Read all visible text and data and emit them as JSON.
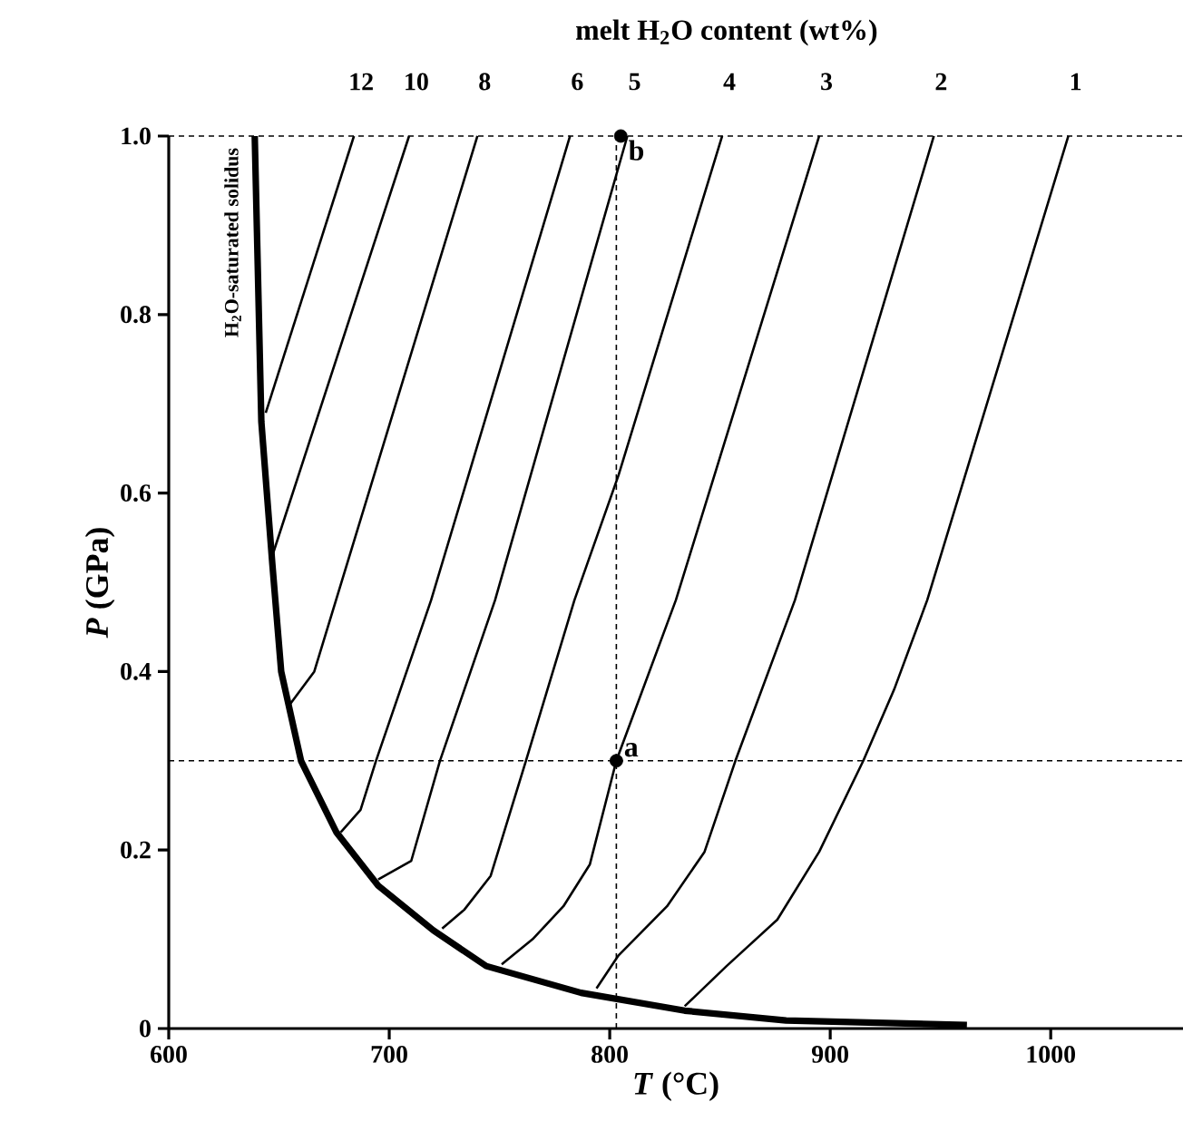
{
  "chart_data": {
    "type": "line",
    "title": "melt H$_{2}$O content (wt%)",
    "xlabel": "*T* (°C)",
    "ylabel": "*P* (GPa)",
    "xlim": [
      600,
      1060
    ],
    "ylim": [
      0,
      1.0
    ],
    "xticks": [
      600,
      700,
      800,
      900,
      1000
    ],
    "yticks": [
      0,
      0.2,
      0.4,
      0.6,
      0.8,
      {
        "value": 1.0,
        "label": "1.0"
      }
    ],
    "grid": false,
    "series": [
      {
        "name": "H$_{2}$O-saturated solidus",
        "color": "#000000",
        "x": [
          639,
          642,
          647,
          651,
          660,
          676,
          695,
          720,
          744,
          787,
          834,
          880,
          962
        ],
        "values": [
          1.0,
          0.68,
          0.52,
          0.4,
          0.3,
          0.22,
          0.16,
          0.11,
          0.07,
          0.04,
          0.02,
          0.009,
          0.004
        ]
      },
      {
        "name": "12",
        "color": "#000000",
        "x": [
          644,
          684
        ],
        "values": [
          0.69,
          1.0
        ]
      },
      {
        "name": "10",
        "color": "#000000",
        "x": [
          647,
          709
        ],
        "values": [
          0.53,
          1.0
        ]
      },
      {
        "name": "8",
        "color": "#000000",
        "x": [
          654,
          666,
          740
        ],
        "values": [
          0.36,
          0.4,
          1.0
        ]
      },
      {
        "name": "6",
        "color": "#000000",
        "x": [
          678,
          687,
          694,
          719,
          782
        ],
        "values": [
          0.22,
          0.245,
          0.3,
          0.48,
          1.0
        ]
      },
      {
        "name": "5",
        "color": "#000000",
        "x": [
          695,
          710,
          723,
          748,
          808
        ],
        "values": [
          0.167,
          0.188,
          0.3,
          0.48,
          1.0
        ]
      },
      {
        "name": "4",
        "color": "#000000",
        "x": [
          724,
          734,
          746,
          762,
          784,
          804,
          851
        ],
        "values": [
          0.112,
          0.133,
          0.171,
          0.3,
          0.48,
          0.62,
          1.0
        ]
      },
      {
        "name": "3",
        "color": "#000000",
        "x": [
          751,
          765,
          779,
          791,
          803,
          830,
          895
        ],
        "values": [
          0.072,
          0.1,
          0.137,
          0.184,
          0.3,
          0.48,
          1.0
        ]
      },
      {
        "name": "2",
        "color": "#000000",
        "x": [
          794,
          804,
          826,
          843,
          857,
          884,
          947
        ],
        "values": [
          0.045,
          0.082,
          0.137,
          0.198,
          0.3,
          0.48,
          1.0
        ]
      },
      {
        "name": "1",
        "color": "#000000",
        "x": [
          834,
          853,
          876,
          895,
          915,
          929,
          944,
          1008
        ],
        "values": [
          0.025,
          0.07,
          0.122,
          0.198,
          0.3,
          0.38,
          0.48,
          1.0
        ]
      },
      {
        "type": "scatter",
        "marker": "circle",
        "color": "#000000",
        "x": [
          803,
          805
        ],
        "values": [
          0.3,
          1.0
        ]
      }
    ],
    "ref_lines": [
      {
        "axis": "y",
        "value": 1.0,
        "line_style": "dashed"
      },
      {
        "axis": "y",
        "value": 0.3,
        "line_style": "dashed"
      },
      {
        "axis": "x",
        "value": 803,
        "line_style": "dashed"
      }
    ],
    "annotations": [
      {
        "text": "a",
        "x": 803,
        "y": 0.3
      },
      {
        "text": "b",
        "x": 805,
        "y": 1.0
      }
    ]
  }
}
